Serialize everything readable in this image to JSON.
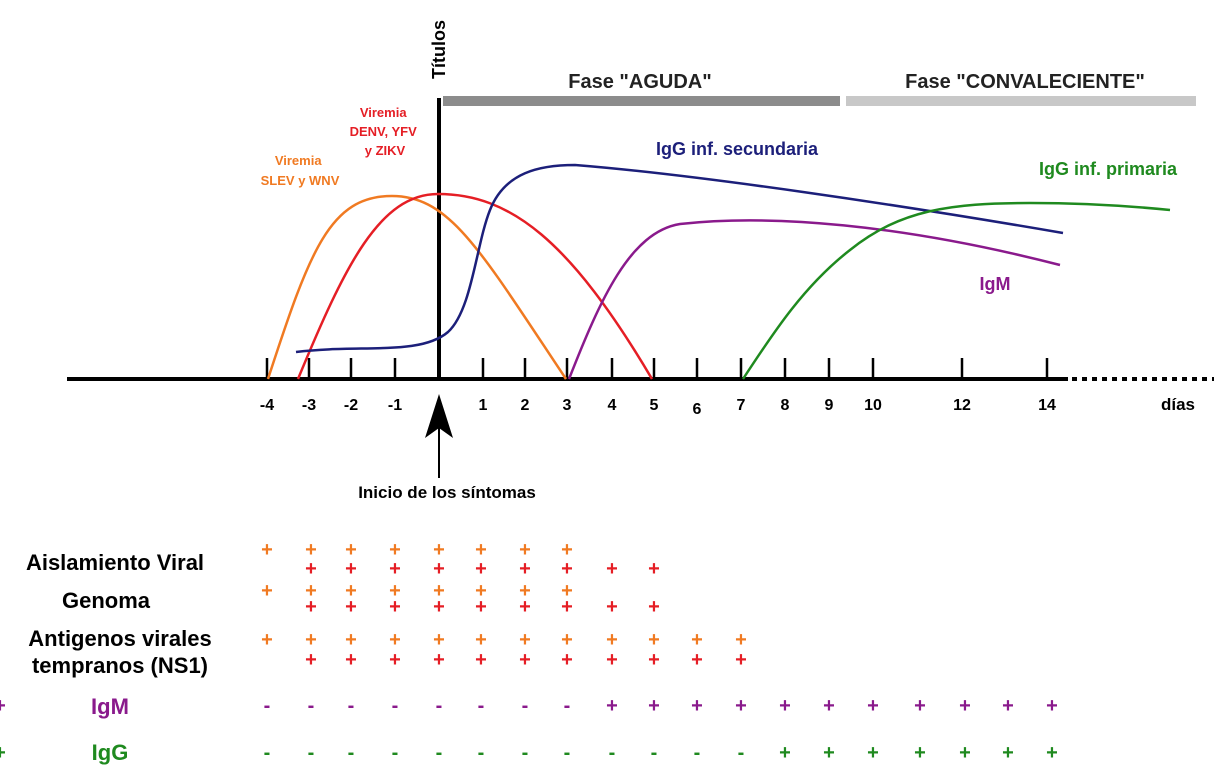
{
  "colors": {
    "orange": "#f07a22",
    "red": "#e51e25",
    "blue": "#1c1f7a",
    "purple": "#8a1a8c",
    "green": "#1f8a1f",
    "phase_acute_bar": "#8c8c8c",
    "phase_conv_bar": "#c8c8c8",
    "axis": "#000000"
  },
  "axis": {
    "y_label": "Títulos",
    "x_unit": "días",
    "ticks": [
      "-4",
      "-3",
      "-2",
      "-1",
      "1",
      "2",
      "3",
      "4",
      "5",
      "6",
      "7",
      "8",
      "9",
      "10",
      "12",
      "14"
    ]
  },
  "phases": {
    "acute": "Fase \"AGUDA\"",
    "convalescent": "Fase \"CONVALECIENTE\""
  },
  "curves": {
    "viremia_slev": [
      "Viremia",
      "SLEV y WNV"
    ],
    "viremia_denv": [
      "Viremia",
      "DENV, YFV",
      "y ZIKV"
    ],
    "igg_secondary": "IgG inf. secundaria",
    "igg_primary": "IgG inf. primaria",
    "igm": "IgM"
  },
  "onset_label": "Inicio de los síntomas",
  "table": {
    "rows": [
      {
        "label": [
          "Aislamiento Viral"
        ],
        "color": "#000000",
        "cells": [
          [
            "+"
          ],
          [
            "+",
            "+"
          ],
          [
            "+",
            "+"
          ],
          [
            "+",
            "+"
          ],
          [
            "+",
            "+"
          ],
          [
            "+",
            "+"
          ],
          [
            "+",
            "+"
          ],
          [
            "+",
            "+"
          ],
          [
            "",
            "+"
          ],
          [
            "",
            "+"
          ]
        ]
      },
      {
        "label": [
          "Genoma"
        ],
        "color": "#000000",
        "cells": [
          [
            "+"
          ],
          [
            "+",
            "+"
          ],
          [
            "+",
            "+"
          ],
          [
            "+",
            "+"
          ],
          [
            "+",
            "+"
          ],
          [
            "+",
            "+"
          ],
          [
            "+",
            "+"
          ],
          [
            "+",
            "+"
          ],
          [
            "",
            "+"
          ],
          [
            "",
            "+"
          ]
        ]
      },
      {
        "label": [
          "Antigenos virales",
          "tempranos (NS1)"
        ],
        "color": "#000000",
        "cells": [
          [
            "+"
          ],
          [
            "+",
            "+"
          ],
          [
            "+",
            "+"
          ],
          [
            "+",
            "+"
          ],
          [
            "+",
            "+"
          ],
          [
            "+",
            "+"
          ],
          [
            "+",
            "+"
          ],
          [
            "+",
            "+"
          ],
          [
            "+",
            "+"
          ],
          [
            "+",
            "+"
          ],
          [
            "+",
            "+"
          ],
          [
            "+",
            "+"
          ]
        ]
      },
      {
        "label": [
          "IgM"
        ],
        "color": "#8a1a8c",
        "cells": [
          "-",
          "-",
          "-",
          "-",
          "-",
          "-",
          "-",
          "-",
          "+",
          "+",
          "+",
          "+",
          "+",
          "+",
          "+",
          "+",
          "+",
          "+",
          "+",
          "+"
        ]
      },
      {
        "label": [
          "IgG"
        ],
        "color": "#1f8a1f",
        "cells": [
          "-",
          "-",
          "-",
          "-",
          "-",
          "-",
          "-",
          "-",
          "-",
          "-",
          "-",
          "-",
          "+",
          "+",
          "+",
          "+",
          "+",
          "+",
          "+",
          "+"
        ]
      }
    ]
  }
}
